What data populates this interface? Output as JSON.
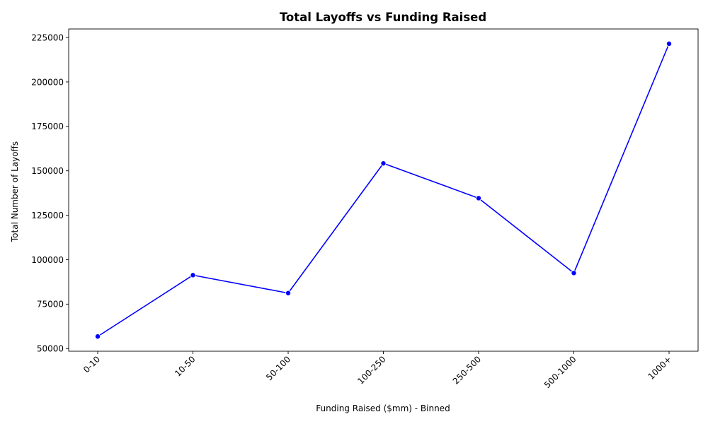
{
  "chart_data": {
    "type": "line",
    "title": "Total Layoffs vs Funding Raised",
    "xlabel": "Funding Raised ($mm) - Binned",
    "ylabel": "Total Number of Layoffs",
    "categories": [
      "0-10",
      "10-50",
      "50-100",
      "100-250",
      "250-500",
      "500-1000",
      "1000+"
    ],
    "series": [
      {
        "values": [
          56800,
          91300,
          81200,
          154200,
          134600,
          92500,
          221500
        ],
        "color": "#0000ff",
        "marker": "circle"
      }
    ],
    "yticks": [
      50000,
      75000,
      100000,
      125000,
      150000,
      175000,
      200000,
      225000
    ],
    "ylim": [
      48500,
      229800
    ],
    "x_tick_rotation_deg": 45,
    "grid": false,
    "legend": "none"
  }
}
